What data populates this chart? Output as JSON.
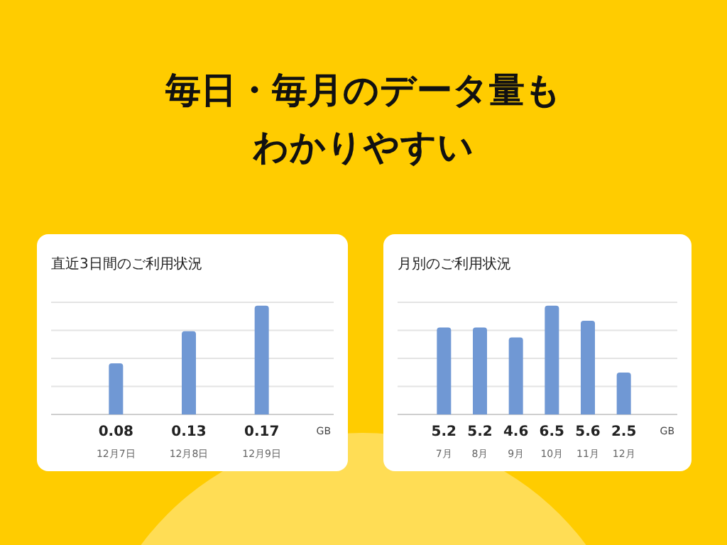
{
  "chart_data": [
    {
      "type": "other",
      "annotations": [
        "毎日・毎月のデータ量も",
        "わかりやすい"
      ]
    },
    {
      "type": "bar",
      "title": "直近3日間のご利用状況",
      "categories": [
        "12月7日",
        "12月8日",
        "12月9日"
      ],
      "values": [
        0.08,
        0.13,
        0.17
      ],
      "color": "#7098d4",
      "data_labels": true,
      "grid": "y",
      "annotations": [
        "GB"
      ]
    },
    {
      "type": "bar",
      "title": "月別のご利用状況",
      "categories": [
        "7月",
        "8月",
        "9月",
        "10月",
        "11月",
        "12月"
      ],
      "values": [
        5.2,
        5.2,
        4.6,
        6.5,
        5.6,
        2.5
      ],
      "color": "#7098d4",
      "data_labels": true,
      "grid": "y",
      "annotations": [
        "GB"
      ]
    }
  ]
}
